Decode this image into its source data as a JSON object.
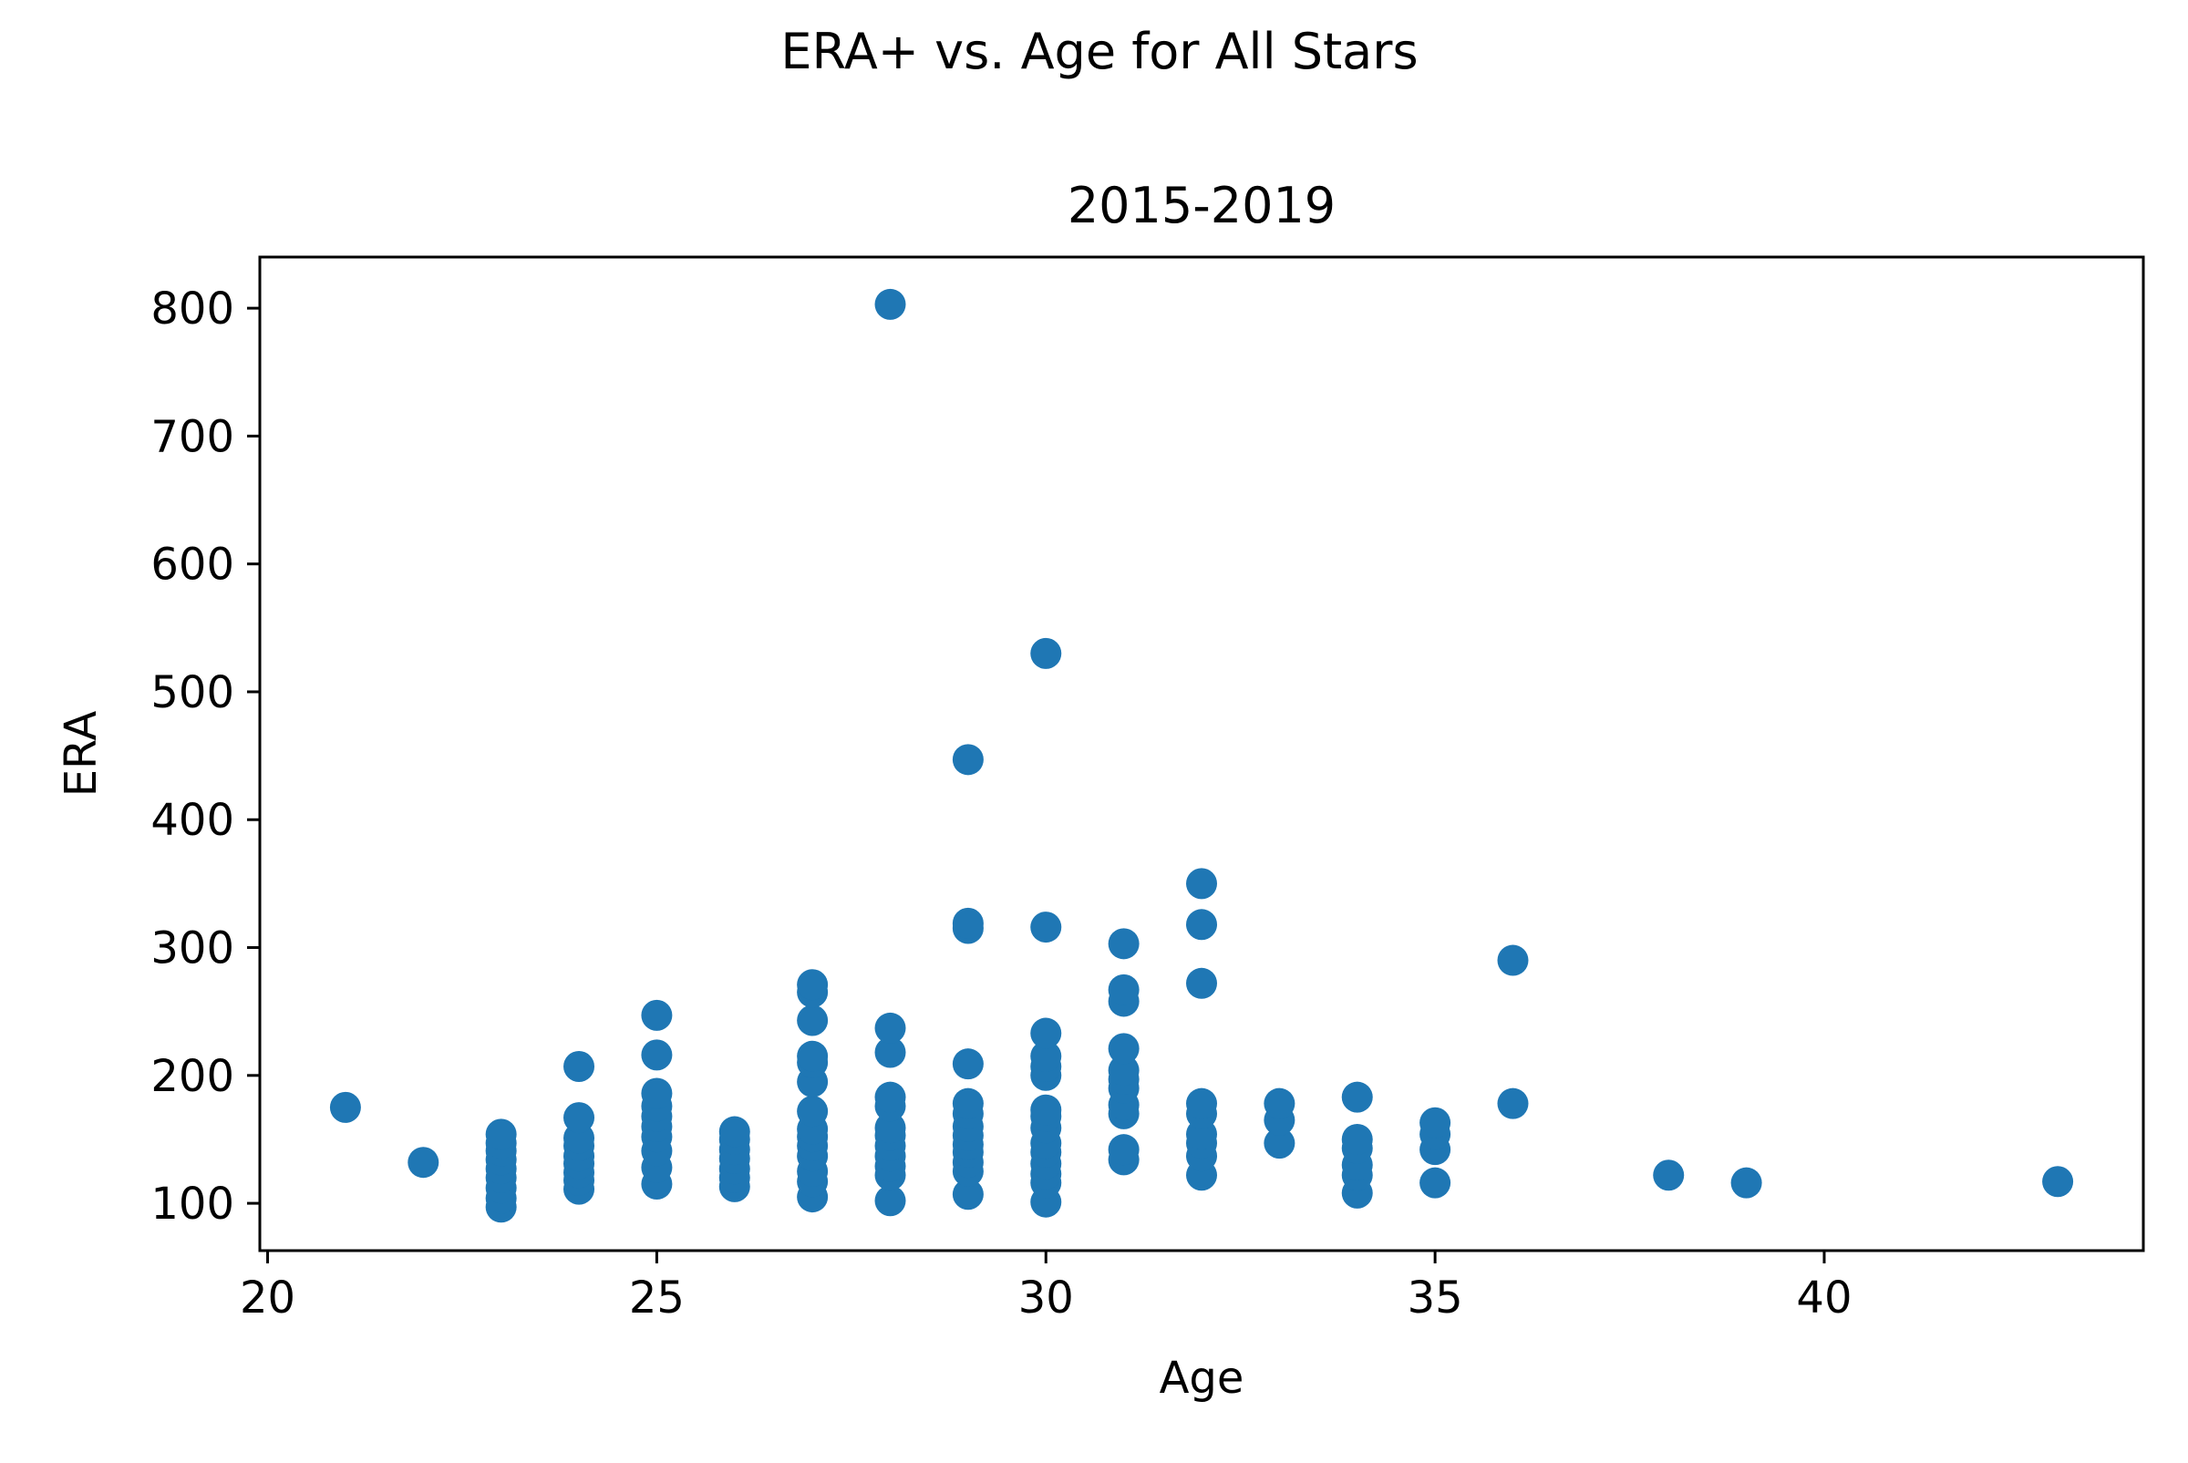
{
  "figure_title": "ERA+ vs. Age for All Stars",
  "chart_data": {
    "type": "scatter",
    "title": "2015-2019",
    "xlabel": "Age",
    "ylabel": "ERA",
    "xlim": [
      19.9,
      44.1
    ],
    "ylim": [
      63,
      840
    ],
    "xticks": [
      20,
      25,
      30,
      35,
      40
    ],
    "yticks": [
      100,
      200,
      300,
      400,
      500,
      600,
      700,
      800
    ],
    "grid": false,
    "marker_color": "#1f77b4",
    "points": [
      {
        "x": 21,
        "y": 175
      },
      {
        "x": 22,
        "y": 132
      },
      {
        "x": 23,
        "y": 97
      },
      {
        "x": 23,
        "y": 104
      },
      {
        "x": 23,
        "y": 112
      },
      {
        "x": 23,
        "y": 120
      },
      {
        "x": 23,
        "y": 127
      },
      {
        "x": 23,
        "y": 134
      },
      {
        "x": 23,
        "y": 141
      },
      {
        "x": 23,
        "y": 147
      },
      {
        "x": 23,
        "y": 154
      },
      {
        "x": 24,
        "y": 111
      },
      {
        "x": 24,
        "y": 118
      },
      {
        "x": 24,
        "y": 124
      },
      {
        "x": 24,
        "y": 131
      },
      {
        "x": 24,
        "y": 137
      },
      {
        "x": 24,
        "y": 145
      },
      {
        "x": 24,
        "y": 151
      },
      {
        "x": 24,
        "y": 167
      },
      {
        "x": 24,
        "y": 207
      },
      {
        "x": 25,
        "y": 115
      },
      {
        "x": 25,
        "y": 128
      },
      {
        "x": 25,
        "y": 141
      },
      {
        "x": 25,
        "y": 152
      },
      {
        "x": 25,
        "y": 160
      },
      {
        "x": 25,
        "y": 168
      },
      {
        "x": 25,
        "y": 176
      },
      {
        "x": 25,
        "y": 186
      },
      {
        "x": 25,
        "y": 216
      },
      {
        "x": 25,
        "y": 247
      },
      {
        "x": 26,
        "y": 113
      },
      {
        "x": 26,
        "y": 120
      },
      {
        "x": 26,
        "y": 127
      },
      {
        "x": 26,
        "y": 135
      },
      {
        "x": 26,
        "y": 142
      },
      {
        "x": 26,
        "y": 150
      },
      {
        "x": 26,
        "y": 156
      },
      {
        "x": 27,
        "y": 105
      },
      {
        "x": 27,
        "y": 117
      },
      {
        "x": 27,
        "y": 125
      },
      {
        "x": 27,
        "y": 137
      },
      {
        "x": 27,
        "y": 145
      },
      {
        "x": 27,
        "y": 152
      },
      {
        "x": 27,
        "y": 158
      },
      {
        "x": 27,
        "y": 172
      },
      {
        "x": 27,
        "y": 195
      },
      {
        "x": 27,
        "y": 210
      },
      {
        "x": 27,
        "y": 215
      },
      {
        "x": 27,
        "y": 243
      },
      {
        "x": 27,
        "y": 265
      },
      {
        "x": 27,
        "y": 271
      },
      {
        "x": 28,
        "y": 102
      },
      {
        "x": 28,
        "y": 122
      },
      {
        "x": 28,
        "y": 129
      },
      {
        "x": 28,
        "y": 137
      },
      {
        "x": 28,
        "y": 145
      },
      {
        "x": 28,
        "y": 153
      },
      {
        "x": 28,
        "y": 159
      },
      {
        "x": 28,
        "y": 176
      },
      {
        "x": 28,
        "y": 183
      },
      {
        "x": 28,
        "y": 218
      },
      {
        "x": 28,
        "y": 237
      },
      {
        "x": 28,
        "y": 803
      },
      {
        "x": 29,
        "y": 107
      },
      {
        "x": 29,
        "y": 125
      },
      {
        "x": 29,
        "y": 132
      },
      {
        "x": 29,
        "y": 140
      },
      {
        "x": 29,
        "y": 146
      },
      {
        "x": 29,
        "y": 153
      },
      {
        "x": 29,
        "y": 160
      },
      {
        "x": 29,
        "y": 170
      },
      {
        "x": 29,
        "y": 178
      },
      {
        "x": 29,
        "y": 209
      },
      {
        "x": 29,
        "y": 315
      },
      {
        "x": 29,
        "y": 319
      },
      {
        "x": 29,
        "y": 447
      },
      {
        "x": 30,
        "y": 101
      },
      {
        "x": 30,
        "y": 116
      },
      {
        "x": 30,
        "y": 123
      },
      {
        "x": 30,
        "y": 131
      },
      {
        "x": 30,
        "y": 140
      },
      {
        "x": 30,
        "y": 147
      },
      {
        "x": 30,
        "y": 159
      },
      {
        "x": 30,
        "y": 168
      },
      {
        "x": 30,
        "y": 173
      },
      {
        "x": 30,
        "y": 200
      },
      {
        "x": 30,
        "y": 207
      },
      {
        "x": 30,
        "y": 215
      },
      {
        "x": 30,
        "y": 233
      },
      {
        "x": 30,
        "y": 316
      },
      {
        "x": 30,
        "y": 530
      },
      {
        "x": 31,
        "y": 134
      },
      {
        "x": 31,
        "y": 142
      },
      {
        "x": 31,
        "y": 170
      },
      {
        "x": 31,
        "y": 177
      },
      {
        "x": 31,
        "y": 190
      },
      {
        "x": 31,
        "y": 197
      },
      {
        "x": 31,
        "y": 204
      },
      {
        "x": 31,
        "y": 221
      },
      {
        "x": 31,
        "y": 258
      },
      {
        "x": 31,
        "y": 267
      },
      {
        "x": 31,
        "y": 303
      },
      {
        "x": 32,
        "y": 122
      },
      {
        "x": 32,
        "y": 137
      },
      {
        "x": 32,
        "y": 147
      },
      {
        "x": 32,
        "y": 154
      },
      {
        "x": 32,
        "y": 170
      },
      {
        "x": 32,
        "y": 178
      },
      {
        "x": 32,
        "y": 272
      },
      {
        "x": 32,
        "y": 318
      },
      {
        "x": 32,
        "y": 350
      },
      {
        "x": 33,
        "y": 147
      },
      {
        "x": 33,
        "y": 165
      },
      {
        "x": 33,
        "y": 178
      },
      {
        "x": 34,
        "y": 108
      },
      {
        "x": 34,
        "y": 122
      },
      {
        "x": 34,
        "y": 130
      },
      {
        "x": 34,
        "y": 143
      },
      {
        "x": 34,
        "y": 150
      },
      {
        "x": 34,
        "y": 183
      },
      {
        "x": 35,
        "y": 116
      },
      {
        "x": 35,
        "y": 142
      },
      {
        "x": 35,
        "y": 154
      },
      {
        "x": 35,
        "y": 163
      },
      {
        "x": 36,
        "y": 178
      },
      {
        "x": 36,
        "y": 290
      },
      {
        "x": 38,
        "y": 122
      },
      {
        "x": 39,
        "y": 116
      },
      {
        "x": 43,
        "y": 117
      }
    ]
  }
}
